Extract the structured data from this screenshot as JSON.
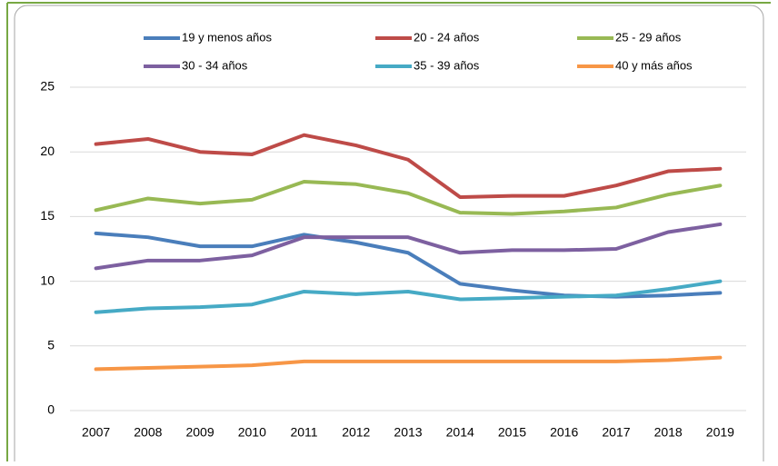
{
  "chart_data": {
    "type": "line",
    "categories": [
      "2007",
      "2008",
      "2009",
      "2010",
      "2011",
      "2012",
      "2013",
      "2014",
      "2015",
      "2016",
      "2017",
      "2018",
      "2019"
    ],
    "series": [
      {
        "name": "19 y menos años",
        "color": "#4a7ebb",
        "values": [
          13.7,
          13.4,
          12.7,
          12.7,
          13.6,
          13.0,
          12.2,
          9.8,
          9.3,
          8.9,
          8.8,
          8.9,
          9.1
        ]
      },
      {
        "name": "20 - 24 años",
        "color": "#be4b48",
        "values": [
          20.6,
          21.0,
          20.0,
          19.8,
          21.3,
          20.5,
          19.4,
          16.5,
          16.6,
          16.6,
          17.4,
          18.5,
          18.7
        ]
      },
      {
        "name": "25 - 29 años",
        "color": "#98b954",
        "values": [
          15.5,
          16.4,
          16.0,
          16.3,
          17.7,
          17.5,
          16.8,
          15.3,
          15.2,
          15.4,
          15.7,
          16.7,
          17.4
        ]
      },
      {
        "name": "30 - 34 años",
        "color": "#7d60a0",
        "values": [
          11.0,
          11.6,
          11.6,
          12.0,
          13.4,
          13.4,
          13.4,
          12.2,
          12.4,
          12.4,
          12.5,
          13.8,
          14.4
        ]
      },
      {
        "name": "35 - 39 años",
        "color": "#46aac5",
        "values": [
          7.6,
          7.9,
          8.0,
          8.2,
          9.2,
          9.0,
          9.2,
          8.6,
          8.7,
          8.8,
          8.9,
          9.4,
          10.0
        ]
      },
      {
        "name": "40 y más años",
        "color": "#f79646",
        "values": [
          3.2,
          3.3,
          3.4,
          3.5,
          3.8,
          3.8,
          3.8,
          3.8,
          3.8,
          3.8,
          3.8,
          3.9,
          4.1
        ]
      }
    ],
    "ylim": [
      0,
      25
    ],
    "yticks": [
      0,
      5,
      10,
      15,
      20,
      25
    ],
    "grid": true,
    "legend": "top"
  }
}
